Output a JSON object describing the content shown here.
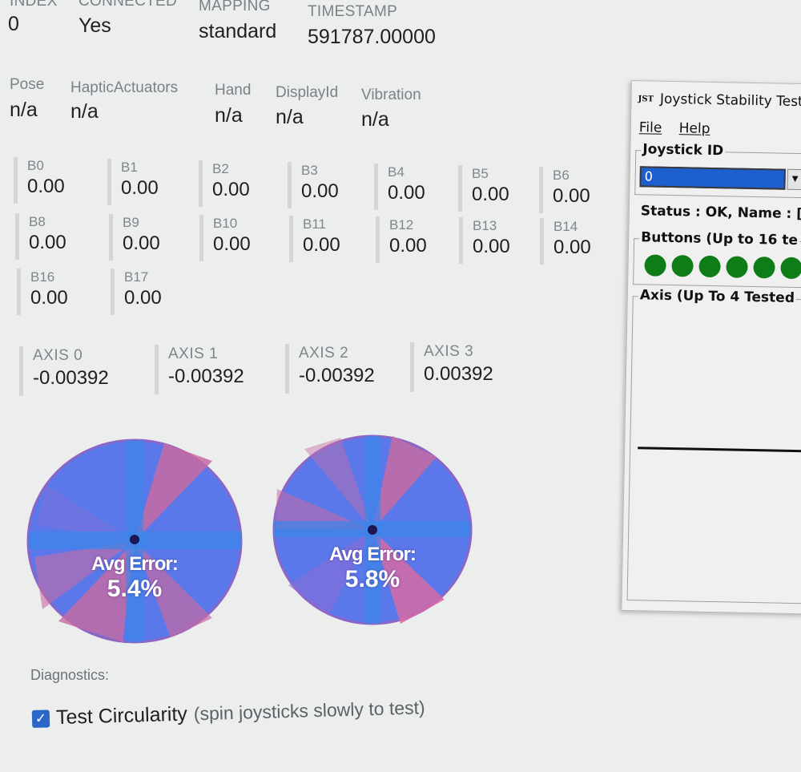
{
  "header": {
    "columns": [
      {
        "label": "INDEX",
        "value": "0"
      },
      {
        "label": "CONNECTED",
        "value": "Yes"
      },
      {
        "label": "MAPPING",
        "value": "standard"
      },
      {
        "label": "TIMESTAMP",
        "value": "591787.00000"
      }
    ]
  },
  "properties": [
    {
      "label": "Pose",
      "value": "n/a"
    },
    {
      "label": "HapticActuators",
      "value": "n/a"
    },
    {
      "label": "Hand",
      "value": "n/a"
    },
    {
      "label": "DisplayId",
      "value": "n/a"
    },
    {
      "label": "Vibration",
      "value": "n/a"
    }
  ],
  "buttons": [
    {
      "label": "B0",
      "value": "0.00"
    },
    {
      "label": "B1",
      "value": "0.00"
    },
    {
      "label": "B2",
      "value": "0.00"
    },
    {
      "label": "B3",
      "value": "0.00"
    },
    {
      "label": "B4",
      "value": "0.00"
    },
    {
      "label": "B5",
      "value": "0.00"
    },
    {
      "label": "B6",
      "value": "0.00"
    },
    {
      "label": "B8",
      "value": "0.00"
    },
    {
      "label": "B9",
      "value": "0.00"
    },
    {
      "label": "B10",
      "value": "0.00"
    },
    {
      "label": "B11",
      "value": "0.00"
    },
    {
      "label": "B12",
      "value": "0.00"
    },
    {
      "label": "B13",
      "value": "0.00"
    },
    {
      "label": "B14",
      "value": "0.00"
    },
    {
      "label": "B16",
      "value": "0.00"
    },
    {
      "label": "B17",
      "value": "0.00"
    }
  ],
  "axes": [
    {
      "label": "AXIS 0",
      "value": "-0.00392"
    },
    {
      "label": "AXIS 1",
      "value": "-0.00392"
    },
    {
      "label": "AXIS 2",
      "value": "-0.00392"
    },
    {
      "label": "AXIS 3",
      "value": "0.00392"
    }
  ],
  "circularity": [
    {
      "title": "Avg Error:",
      "value": "5.4%"
    },
    {
      "title": "Avg Error:",
      "value": "5.8%"
    }
  ],
  "diagnostics": {
    "label": "Diagnostics:",
    "checkbox_label": "Test Circularity",
    "checkbox_hint": "(spin joysticks slowly to test)",
    "checked": true
  },
  "colors": {
    "circle_blue": "#5b78ea",
    "circle_pink": "#c86aa3",
    "checkbox_blue": "#2a67c8",
    "led_green": "#0f7d17"
  },
  "dialog": {
    "logo": "JST",
    "title": "Joystick Stability Test",
    "menu": [
      "File",
      "Help"
    ],
    "joystick_id_group": "Joystick ID",
    "joystick_id_value": "0",
    "status": "Status : OK, Name : [",
    "buttons_group": "Buttons  (Up to 16 te",
    "button_leds": 6,
    "axis_group": "Axis (Up To 4 Tested"
  }
}
